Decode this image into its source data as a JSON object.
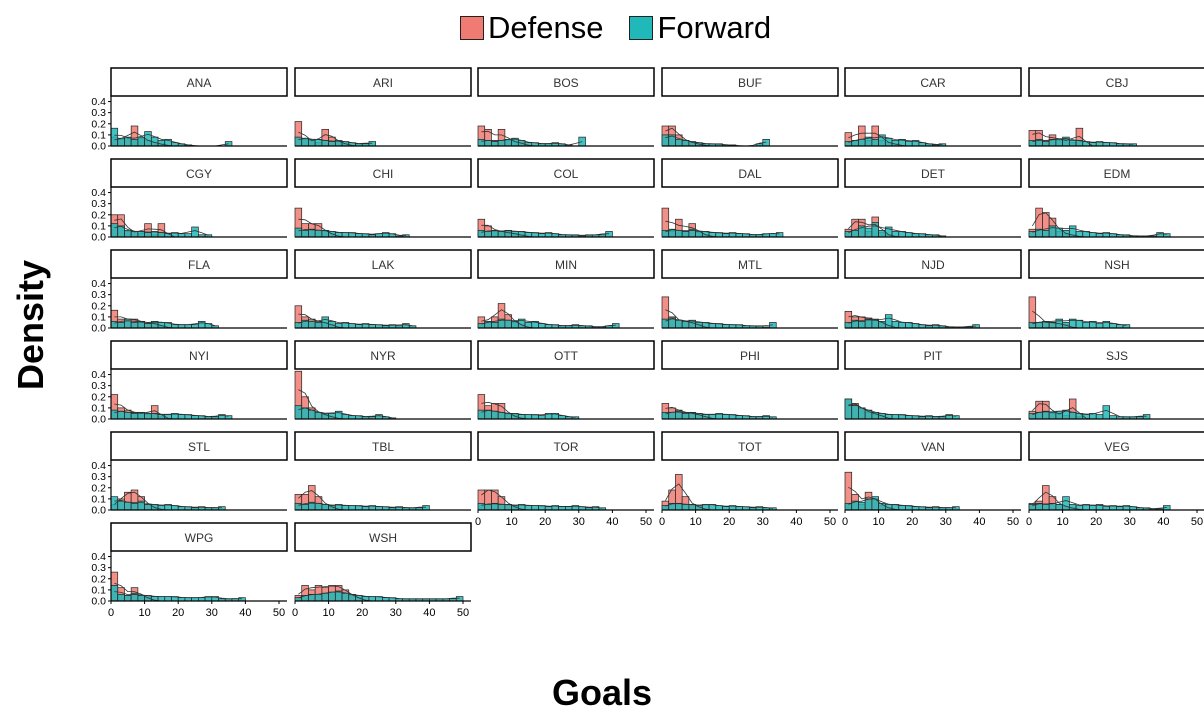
{
  "chart_data": {
    "type": "histogram-facets",
    "xlabel": "Goals",
    "ylabel": "Density",
    "xlim": [
      0,
      50
    ],
    "ylim": [
      0,
      0.45
    ],
    "xticks": [
      0,
      10,
      20,
      30,
      40,
      50
    ],
    "yticks": [
      0.0,
      0.1,
      0.2,
      0.3,
      0.4
    ],
    "ytick_labels": [
      "0.0",
      "0.1",
      "0.2",
      "0.3",
      "0.4"
    ],
    "legend_position": "top",
    "series": [
      {
        "name": "Defense",
        "color": "#F07B72"
      },
      {
        "name": "Forward",
        "color": "#20B8B9"
      }
    ],
    "bin_width": 2,
    "panels": [
      {
        "team": "ANA",
        "defense": [
          0.08,
          0.06,
          0.07,
          0.18,
          0.07,
          0.05,
          0.03,
          0.02,
          0,
          0,
          0,
          0
        ],
        "forward": [
          0.16,
          0.07,
          0.08,
          0.06,
          0.08,
          0.13,
          0.08,
          0.05,
          0.06,
          0.03,
          0.02,
          0.01,
          0,
          0,
          0,
          0,
          0,
          0.04
        ]
      },
      {
        "team": "ARI",
        "defense": [
          0.22,
          0.06,
          0.05,
          0.03,
          0.15,
          0.08,
          0.04,
          0.02,
          0,
          0,
          0
        ],
        "forward": [
          0.08,
          0.07,
          0.06,
          0.06,
          0.05,
          0.04,
          0.05,
          0.04,
          0.03,
          0.02,
          0.02,
          0.04
        ]
      },
      {
        "team": "BOS",
        "defense": [
          0.18,
          0.15,
          0.05,
          0.15,
          0.05,
          0.04,
          0.03,
          0,
          0,
          0
        ],
        "forward": [
          0.06,
          0.05,
          0.04,
          0.05,
          0.06,
          0.07,
          0.05,
          0.03,
          0.03,
          0.02,
          0.02,
          0.03,
          0.02,
          0.01,
          0,
          0.08
        ]
      },
      {
        "team": "BUF",
        "defense": [
          0.18,
          0.18,
          0.1,
          0.05,
          0.03,
          0.02,
          0,
          0
        ],
        "forward": [
          0.1,
          0.1,
          0.06,
          0.05,
          0.04,
          0.03,
          0.02,
          0.02,
          0.02,
          0.01,
          0.01,
          0,
          0,
          0,
          0.02,
          0.06
        ]
      },
      {
        "team": "CAR",
        "defense": [
          0.12,
          0.05,
          0.18,
          0.05,
          0.18,
          0.05,
          0.03,
          0.02,
          0,
          0
        ],
        "forward": [
          0.04,
          0.05,
          0.06,
          0.08,
          0.06,
          0.1,
          0.07,
          0.05,
          0.06,
          0.04,
          0.05,
          0.03,
          0.02,
          0.01,
          0.02
        ]
      },
      {
        "team": "CBJ",
        "defense": [
          0.14,
          0.14,
          0.05,
          0.1,
          0.05,
          0.06,
          0.03,
          0.16,
          0,
          0
        ],
        "forward": [
          0.05,
          0.06,
          0.04,
          0.06,
          0.06,
          0.08,
          0.05,
          0.05,
          0.04,
          0.03,
          0.04,
          0.03,
          0.03,
          0.02,
          0.02,
          0.02
        ]
      },
      {
        "team": "CGY",
        "defense": [
          0.2,
          0.2,
          0.05,
          0.05,
          0.03,
          0.12,
          0.02,
          0.12,
          0,
          0
        ],
        "forward": [
          0.12,
          0.1,
          0.06,
          0.05,
          0.05,
          0.04,
          0.05,
          0.04,
          0.03,
          0.04,
          0.03,
          0.03,
          0.09,
          0.02,
          0.02
        ]
      },
      {
        "team": "CHI",
        "defense": [
          0.26,
          0.12,
          0.12,
          0.12,
          0.05,
          0.03,
          0,
          0
        ],
        "forward": [
          0.08,
          0.06,
          0.07,
          0.06,
          0.06,
          0.05,
          0.04,
          0.04,
          0.04,
          0.03,
          0.03,
          0.02,
          0.03,
          0.04,
          0.03,
          0.01,
          0.02
        ]
      },
      {
        "team": "COL",
        "defense": [
          0.16,
          0.1,
          0.06,
          0.05,
          0.04,
          0.03,
          0.02,
          0,
          0
        ],
        "forward": [
          0.06,
          0.05,
          0.06,
          0.05,
          0.06,
          0.05,
          0.05,
          0.04,
          0.04,
          0.03,
          0.04,
          0.03,
          0.02,
          0.02,
          0.02,
          0.01,
          0.02,
          0.02,
          0.02,
          0.05
        ]
      },
      {
        "team": "DAL",
        "defense": [
          0.26,
          0.05,
          0.16,
          0.05,
          0.12,
          0.04,
          0.02,
          0,
          0
        ],
        "forward": [
          0.06,
          0.07,
          0.06,
          0.05,
          0.07,
          0.05,
          0.05,
          0.04,
          0.04,
          0.03,
          0.04,
          0.03,
          0.03,
          0.02,
          0.02,
          0.03,
          0.03,
          0.04
        ]
      },
      {
        "team": "DET",
        "defense": [
          0.07,
          0.16,
          0.16,
          0.05,
          0.18,
          0.04,
          0.02,
          0,
          0,
          0
        ],
        "forward": [
          0.05,
          0.06,
          0.1,
          0.08,
          0.13,
          0.06,
          0.09,
          0.05,
          0.05,
          0.04,
          0.03,
          0.03,
          0.02,
          0.02,
          0.01
        ]
      },
      {
        "team": "EDM",
        "defense": [
          0.07,
          0.26,
          0.22,
          0.17,
          0.05,
          0.03,
          0.02,
          0,
          0
        ],
        "forward": [
          0.05,
          0.07,
          0.06,
          0.1,
          0.08,
          0.06,
          0.1,
          0.05,
          0.05,
          0.04,
          0.03,
          0.04,
          0.03,
          0.02,
          0.02,
          0.01,
          0.01,
          0.01,
          0.01,
          0.04,
          0.03
        ]
      },
      {
        "team": "FLA",
        "defense": [
          0.16,
          0.08,
          0.08,
          0.08,
          0.06,
          0.04,
          0.05,
          0.02,
          0,
          0
        ],
        "forward": [
          0.06,
          0.05,
          0.08,
          0.05,
          0.06,
          0.04,
          0.06,
          0.05,
          0.05,
          0.03,
          0.03,
          0.03,
          0.03,
          0.06,
          0.04,
          0.02
        ]
      },
      {
        "team": "LAK",
        "defense": [
          0.2,
          0.1,
          0.08,
          0.06,
          0.05,
          0.03,
          0,
          0
        ],
        "forward": [
          0.05,
          0.07,
          0.06,
          0.05,
          0.1,
          0.06,
          0.04,
          0.05,
          0.04,
          0.03,
          0.04,
          0.03,
          0.03,
          0.02,
          0.03,
          0.02,
          0.04,
          0.02
        ]
      },
      {
        "team": "MIN",
        "defense": [
          0.1,
          0.05,
          0.1,
          0.22,
          0.12,
          0.05,
          0.03,
          0,
          0
        ],
        "forward": [
          0.04,
          0.06,
          0.05,
          0.08,
          0.07,
          0.06,
          0.08,
          0.05,
          0.06,
          0.04,
          0.03,
          0.03,
          0.02,
          0.02,
          0.03,
          0.02,
          0.02,
          0.01,
          0.01,
          0.02,
          0.04
        ]
      },
      {
        "team": "MTL",
        "defense": [
          0.28,
          0.1,
          0.07,
          0.06,
          0.05,
          0.03,
          0,
          0
        ],
        "forward": [
          0.08,
          0.09,
          0.07,
          0.06,
          0.07,
          0.05,
          0.05,
          0.04,
          0.04,
          0.03,
          0.03,
          0.03,
          0.02,
          0.02,
          0.02,
          0.01,
          0.05
        ]
      },
      {
        "team": "NJD",
        "defense": [
          0.15,
          0.1,
          0.1,
          0.09,
          0.08,
          0.05,
          0.02,
          0,
          0
        ],
        "forward": [
          0.05,
          0.07,
          0.06,
          0.08,
          0.07,
          0.06,
          0.12,
          0.06,
          0.05,
          0.05,
          0.04,
          0.03,
          0.02,
          0.03,
          0.02,
          0.01,
          0.01,
          0.01,
          0.01,
          0.03
        ]
      },
      {
        "team": "NSH",
        "defense": [
          0.28,
          0.05,
          0.05,
          0.05,
          0.04,
          0.03,
          0,
          0
        ],
        "forward": [
          0.05,
          0.05,
          0.06,
          0.05,
          0.08,
          0.05,
          0.08,
          0.07,
          0.05,
          0.06,
          0.04,
          0.06,
          0.04,
          0.03,
          0.03
        ]
      },
      {
        "team": "NYI",
        "defense": [
          0.22,
          0.1,
          0.08,
          0.06,
          0.05,
          0.04,
          0.12,
          0.02,
          0,
          0
        ],
        "forward": [
          0.08,
          0.07,
          0.06,
          0.05,
          0.06,
          0.05,
          0.05,
          0.04,
          0.04,
          0.05,
          0.04,
          0.04,
          0.03,
          0.03,
          0.02,
          0.02,
          0.04,
          0.03
        ]
      },
      {
        "team": "NYR",
        "defense": [
          0.43,
          0.2,
          0.1,
          0.06,
          0.04,
          0.02,
          0,
          0
        ],
        "forward": [
          0.12,
          0.1,
          0.08,
          0.06,
          0.05,
          0.05,
          0.07,
          0.04,
          0.03,
          0.03,
          0.02,
          0.02,
          0.04,
          0.02,
          0.01
        ]
      },
      {
        "team": "OTT",
        "defense": [
          0.22,
          0.12,
          0.14,
          0.14,
          0.04,
          0.03,
          0,
          0
        ],
        "forward": [
          0.08,
          0.08,
          0.07,
          0.06,
          0.05,
          0.05,
          0.04,
          0.04,
          0.04,
          0.03,
          0.05,
          0.05,
          0.03,
          0.02,
          0.02
        ]
      },
      {
        "team": "PHI",
        "defense": [
          0.14,
          0.1,
          0.08,
          0.06,
          0.05,
          0.04,
          0.02,
          0,
          0
        ],
        "forward": [
          0.06,
          0.06,
          0.07,
          0.05,
          0.06,
          0.05,
          0.04,
          0.04,
          0.05,
          0.04,
          0.04,
          0.03,
          0.03,
          0.02,
          0.02,
          0.03,
          0.02
        ]
      },
      {
        "team": "PIT",
        "defense": [
          0.18,
          0.14,
          0.1,
          0.06,
          0.05,
          0.03,
          0,
          0
        ],
        "forward": [
          0.18,
          0.12,
          0.1,
          0.08,
          0.06,
          0.05,
          0.04,
          0.04,
          0.04,
          0.03,
          0.03,
          0.02,
          0.03,
          0.02,
          0.02,
          0.04,
          0.03
        ]
      },
      {
        "team": "SJS",
        "defense": [
          0.07,
          0.16,
          0.16,
          0.05,
          0.05,
          0.03,
          0.18,
          0.02,
          0,
          0
        ],
        "forward": [
          0.05,
          0.06,
          0.07,
          0.06,
          0.07,
          0.08,
          0.06,
          0.05,
          0.04,
          0.05,
          0.04,
          0.12,
          0.03,
          0.02,
          0.02,
          0.02,
          0.02,
          0.04
        ]
      },
      {
        "team": "STL",
        "defense": [
          0.05,
          0.1,
          0.16,
          0.18,
          0.12,
          0.05,
          0.02,
          0,
          0
        ],
        "forward": [
          0.12,
          0.08,
          0.07,
          0.06,
          0.08,
          0.05,
          0.05,
          0.04,
          0.05,
          0.04,
          0.03,
          0.03,
          0.02,
          0.03,
          0.02,
          0.02,
          0.03
        ]
      },
      {
        "team": "TBL",
        "defense": [
          0.14,
          0.14,
          0.22,
          0.12,
          0.05,
          0.03,
          0,
          0
        ],
        "forward": [
          0.06,
          0.05,
          0.07,
          0.06,
          0.05,
          0.04,
          0.05,
          0.04,
          0.04,
          0.04,
          0.03,
          0.04,
          0.03,
          0.03,
          0.02,
          0.03,
          0.02,
          0.02,
          0.02,
          0.04
        ]
      },
      {
        "team": "TOR",
        "defense": [
          0.18,
          0.18,
          0.18,
          0.12,
          0.05,
          0.03,
          0,
          0
        ],
        "forward": [
          0.06,
          0.05,
          0.06,
          0.05,
          0.05,
          0.04,
          0.05,
          0.04,
          0.04,
          0.04,
          0.03,
          0.04,
          0.03,
          0.03,
          0.04,
          0.03,
          0.02,
          0.03,
          0.02
        ]
      },
      {
        "team": "TOT",
        "defense": [
          0.08,
          0.18,
          0.32,
          0.12,
          0.05,
          0.03,
          0,
          0
        ],
        "forward": [
          0.04,
          0.06,
          0.06,
          0.05,
          0.05,
          0.04,
          0.05,
          0.05,
          0.04,
          0.03,
          0.04,
          0.03,
          0.03,
          0.02,
          0.03,
          0.02,
          0.02
        ]
      },
      {
        "team": "VAN",
        "defense": [
          0.34,
          0.14,
          0.05,
          0.16,
          0.1,
          0.04,
          0.02,
          0,
          0
        ],
        "forward": [
          0.06,
          0.08,
          0.07,
          0.1,
          0.12,
          0.06,
          0.05,
          0.05,
          0.04,
          0.04,
          0.03,
          0.03,
          0.02,
          0.03,
          0.02,
          0.02,
          0.03
        ]
      },
      {
        "team": "VEG",
        "defense": [
          0.06,
          0.08,
          0.22,
          0.12,
          0.05,
          0.03,
          0.02,
          0,
          0
        ],
        "forward": [
          0.05,
          0.06,
          0.05,
          0.06,
          0.05,
          0.12,
          0.05,
          0.04,
          0.05,
          0.04,
          0.05,
          0.03,
          0.04,
          0.03,
          0.04,
          0.03,
          0.02,
          0.02,
          0.01,
          0.01,
          0.04
        ]
      },
      {
        "team": "WPG",
        "defense": [
          0.26,
          0.12,
          0.05,
          0.12,
          0.05,
          0.03,
          0,
          0
        ],
        "forward": [
          0.14,
          0.06,
          0.05,
          0.07,
          0.05,
          0.05,
          0.04,
          0.04,
          0.04,
          0.04,
          0.03,
          0.03,
          0.03,
          0.03,
          0.04,
          0.04,
          0.02,
          0.02,
          0.02,
          0.03
        ]
      },
      {
        "team": "WSH",
        "defense": [
          0.05,
          0.14,
          0.1,
          0.14,
          0.12,
          0.14,
          0.14,
          0.1,
          0.05,
          0.03,
          0,
          0
        ],
        "forward": [
          0.03,
          0.05,
          0.06,
          0.06,
          0.07,
          0.08,
          0.09,
          0.07,
          0.06,
          0.05,
          0.04,
          0.04,
          0.04,
          0.03,
          0.03,
          0.02,
          0.02,
          0.02,
          0.02,
          0.02,
          0.02,
          0.02,
          0.02,
          0.02,
          0.04
        ]
      }
    ]
  }
}
